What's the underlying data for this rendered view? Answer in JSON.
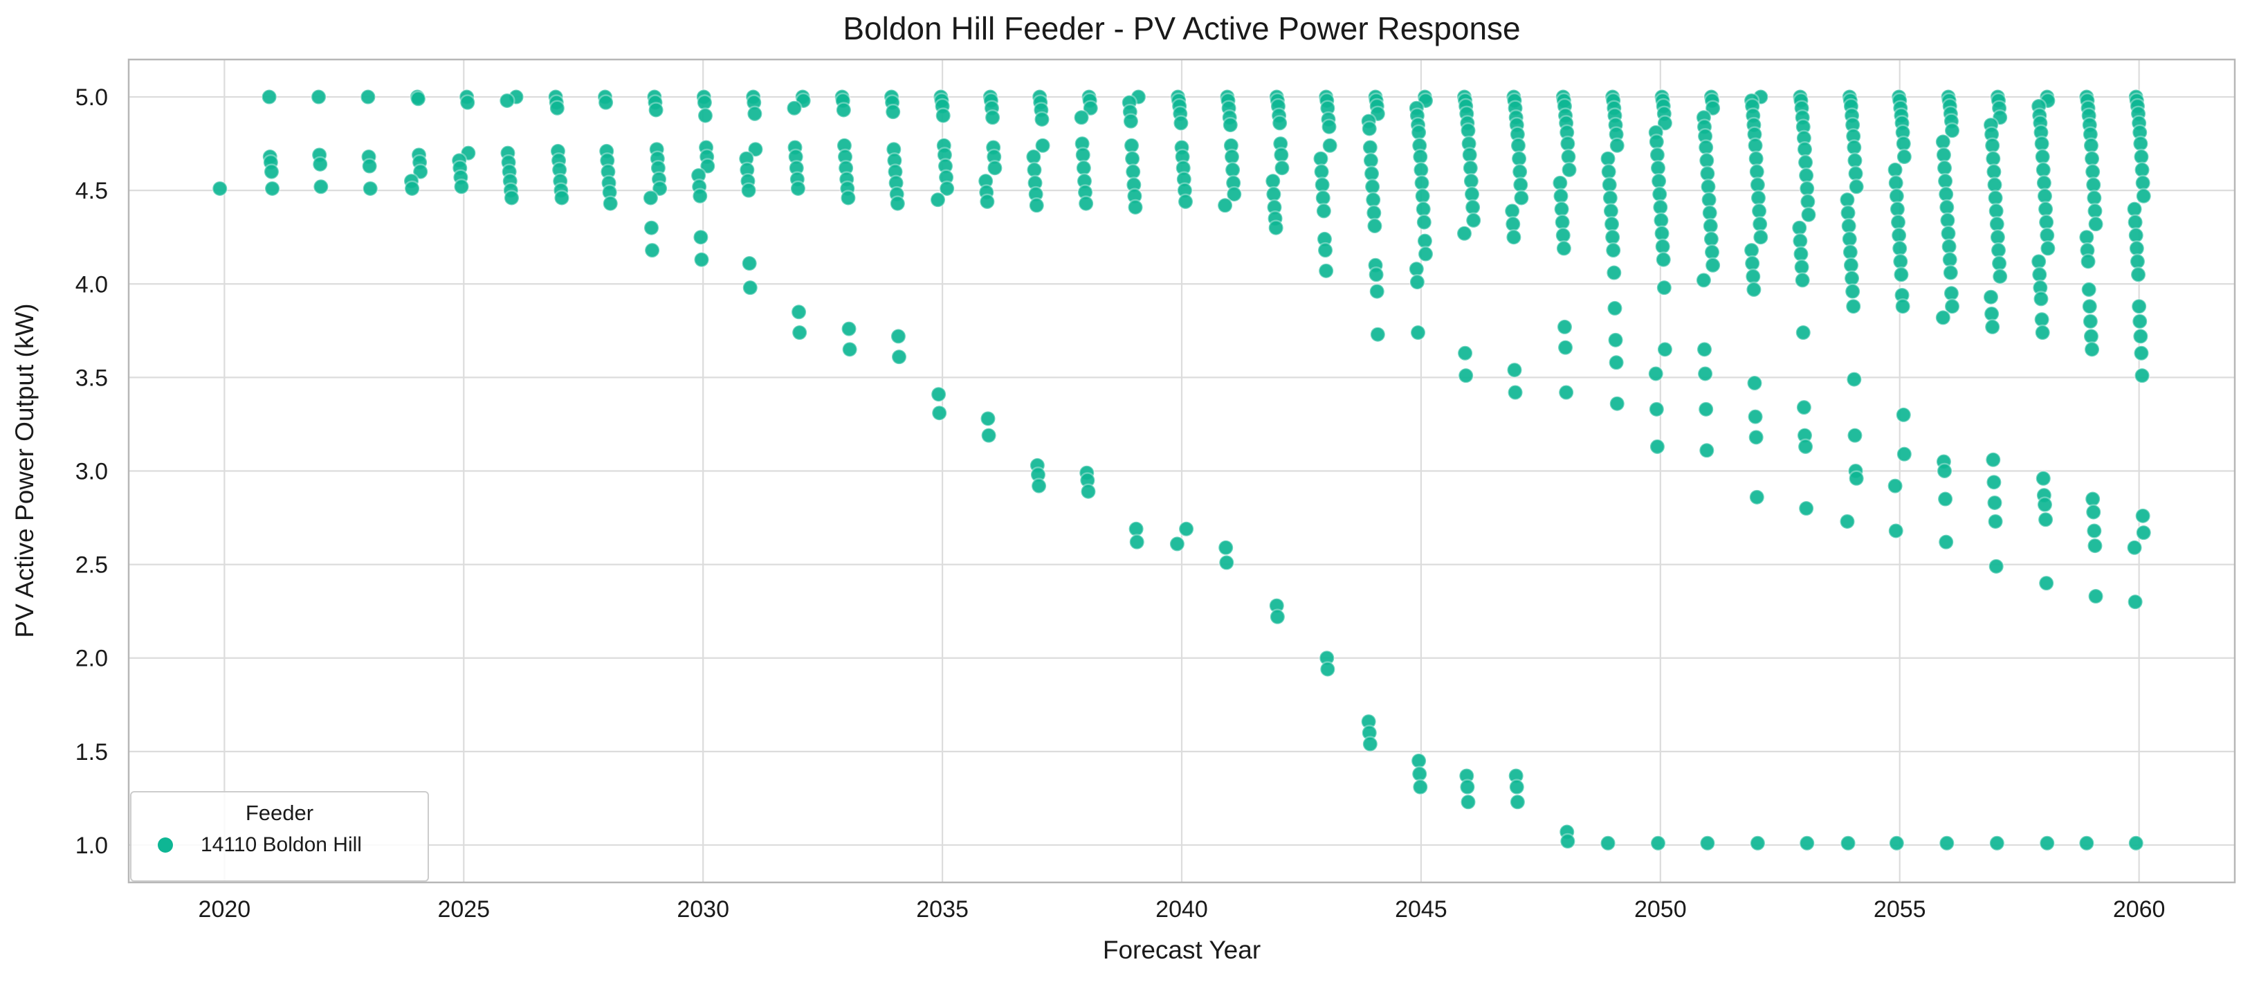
{
  "figure": {
    "background": "#ffffff"
  },
  "chart_data": {
    "type": "scatter",
    "title": "Boldon Hill Feeder - PV Active Power Response",
    "xlabel": "Forecast Year",
    "ylabel": "PV Active Power Output (kW)",
    "xlim": [
      2018,
      2062
    ],
    "ylim": [
      0.8,
      5.2
    ],
    "xticks": [
      2020,
      2025,
      2030,
      2035,
      2040,
      2045,
      2050,
      2055,
      2060
    ],
    "yticks": [
      1.0,
      1.5,
      2.0,
      2.5,
      3.0,
      3.5,
      4.0,
      4.5,
      5.0
    ],
    "ytick_labels": [
      "1.0",
      "1.5",
      "2.0",
      "2.5",
      "3.0",
      "3.5",
      "4.0",
      "4.5",
      "5.0"
    ],
    "grid": true,
    "legend": {
      "title": "Feeder",
      "position": "lower-left",
      "entries": [
        {
          "label": "14110 Boldon Hill",
          "color": "#0EB694"
        }
      ]
    },
    "styles": {
      "marker_color": "#0EB694",
      "grid_color": "#dcdcdc",
      "spine_color": "#b7b7b7",
      "text_color": "#1a1a1a",
      "marker_radius": 10.5
    },
    "series": [
      {
        "name": "14110 Boldon Hill",
        "color": "#0EB694",
        "points_by_year": {
          "2020": [
            4.51
          ],
          "2021": [
            5.0,
            4.68,
            4.65,
            4.6,
            4.51
          ],
          "2022": [
            5.0,
            4.69,
            4.64,
            4.52
          ],
          "2023": [
            5.0,
            4.68,
            4.63,
            4.51
          ],
          "2024": [
            5.0,
            4.99,
            4.69,
            4.65,
            4.6,
            4.55,
            4.51
          ],
          "2025": [
            5.0,
            4.97,
            4.7,
            4.66,
            4.62,
            4.57,
            4.52
          ],
          "2026": [
            5.0,
            4.98,
            4.7,
            4.65,
            4.6,
            4.55,
            4.5,
            4.46
          ],
          "2027": [
            5.0,
            4.97,
            4.94,
            4.71,
            4.66,
            4.61,
            4.55,
            4.5,
            4.46
          ],
          "2028": [
            5.0,
            4.97,
            4.71,
            4.66,
            4.6,
            4.54,
            4.49,
            4.43
          ],
          "2029": [
            5.0,
            4.97,
            4.93,
            4.72,
            4.67,
            4.62,
            4.56,
            4.51,
            4.46,
            4.3,
            4.18
          ],
          "2030": [
            5.0,
            4.97,
            4.9,
            4.73,
            4.68,
            4.63,
            4.58,
            4.52,
            4.47,
            4.25,
            4.13
          ],
          "2031": [
            5.0,
            4.97,
            4.91,
            4.72,
            4.67,
            4.61,
            4.55,
            4.5,
            4.11,
            3.98
          ],
          "2032": [
            5.0,
            4.98,
            4.94,
            4.73,
            4.68,
            4.62,
            4.56,
            4.51,
            3.85,
            3.74
          ],
          "2033": [
            5.0,
            4.98,
            4.93,
            4.74,
            4.68,
            4.62,
            4.56,
            4.51,
            4.46,
            3.76,
            3.65
          ],
          "2034": [
            5.0,
            4.97,
            4.92,
            4.72,
            4.66,
            4.6,
            4.54,
            4.48,
            4.43,
            3.72,
            3.61
          ],
          "2035": [
            5.0,
            4.98,
            4.95,
            4.9,
            4.74,
            4.69,
            4.63,
            4.57,
            4.51,
            4.45,
            3.41,
            3.31
          ],
          "2036": [
            5.0,
            4.98,
            4.94,
            4.89,
            4.73,
            4.68,
            4.62,
            4.55,
            4.49,
            4.44,
            3.28,
            3.19
          ],
          "2037": [
            5.0,
            4.97,
            4.93,
            4.88,
            4.74,
            4.68,
            4.61,
            4.54,
            4.48,
            4.42,
            3.03,
            2.98,
            2.92
          ],
          "2038": [
            5.0,
            4.98,
            4.94,
            4.89,
            4.75,
            4.69,
            4.62,
            4.55,
            4.49,
            4.43,
            2.99,
            2.95,
            2.89
          ],
          "2039": [
            5.0,
            4.97,
            4.92,
            4.87,
            4.74,
            4.67,
            4.6,
            4.53,
            4.47,
            4.41,
            2.69,
            2.62
          ],
          "2040": [
            5.0,
            4.98,
            4.95,
            4.91,
            4.86,
            4.73,
            4.68,
            4.62,
            4.56,
            4.5,
            4.44,
            2.69,
            2.61
          ],
          "2041": [
            5.0,
            4.98,
            4.94,
            4.89,
            4.85,
            4.74,
            4.68,
            4.61,
            4.54,
            4.48,
            4.42,
            2.59,
            2.51
          ],
          "2042": [
            5.0,
            4.98,
            4.95,
            4.9,
            4.86,
            4.75,
            4.69,
            4.62,
            4.55,
            4.48,
            4.41,
            4.35,
            4.3,
            2.28,
            2.22
          ],
          "2043": [
            5.0,
            4.98,
            4.94,
            4.88,
            4.84,
            4.74,
            4.67,
            4.6,
            4.53,
            4.46,
            4.39,
            4.24,
            4.18,
            4.07,
            2.0,
            1.94
          ],
          "2044": [
            5.0,
            4.98,
            4.95,
            4.91,
            4.87,
            4.83,
            4.73,
            4.66,
            4.59,
            4.52,
            4.45,
            4.38,
            4.31,
            4.1,
            4.05,
            3.96,
            3.73,
            1.66,
            1.6,
            1.54
          ],
          "2045": [
            5.0,
            4.98,
            4.94,
            4.9,
            4.85,
            4.81,
            4.74,
            4.68,
            4.61,
            4.54,
            4.47,
            4.4,
            4.33,
            4.23,
            4.16,
            4.08,
            4.01,
            3.74,
            1.45,
            1.38,
            1.31
          ],
          "2046": [
            5.0,
            4.98,
            4.95,
            4.91,
            4.86,
            4.82,
            4.75,
            4.69,
            4.62,
            4.55,
            4.48,
            4.41,
            4.34,
            4.27,
            3.63,
            3.51,
            1.37,
            1.31,
            1.23
          ],
          "2047": [
            5.0,
            4.98,
            4.94,
            4.89,
            4.85,
            4.8,
            4.74,
            4.67,
            4.6,
            4.53,
            4.46,
            4.39,
            4.32,
            4.25,
            3.54,
            3.42,
            1.37,
            1.31,
            1.23
          ],
          "2048": [
            5.0,
            4.98,
            4.95,
            4.9,
            4.86,
            4.81,
            4.75,
            4.68,
            4.61,
            4.54,
            4.47,
            4.4,
            4.33,
            4.26,
            4.19,
            3.77,
            3.66,
            3.42,
            1.07,
            1.02
          ],
          "2049": [
            5.0,
            4.98,
            4.94,
            4.9,
            4.85,
            4.8,
            4.74,
            4.67,
            4.6,
            4.53,
            4.46,
            4.39,
            4.32,
            4.25,
            4.18,
            4.06,
            3.87,
            3.7,
            3.58,
            3.36,
            1.01
          ],
          "2050": [
            5.0,
            4.98,
            4.95,
            4.91,
            4.86,
            4.81,
            4.76,
            4.69,
            4.62,
            4.55,
            4.48,
            4.41,
            4.34,
            4.27,
            4.2,
            4.13,
            3.98,
            3.65,
            3.52,
            3.33,
            3.13,
            1.01
          ],
          "2051": [
            5.0,
            4.98,
            4.94,
            4.89,
            4.84,
            4.79,
            4.73,
            4.66,
            4.59,
            4.52,
            4.45,
            4.38,
            4.31,
            4.24,
            4.17,
            4.1,
            4.02,
            3.65,
            3.52,
            3.33,
            3.11,
            1.01
          ],
          "2052": [
            5.0,
            4.98,
            4.95,
            4.9,
            4.85,
            4.8,
            4.74,
            4.67,
            4.6,
            4.53,
            4.46,
            4.39,
            4.32,
            4.25,
            4.18,
            4.11,
            4.04,
            3.97,
            3.47,
            3.29,
            3.18,
            2.86,
            1.01
          ],
          "2053": [
            5.0,
            4.98,
            4.94,
            4.89,
            4.84,
            4.78,
            4.72,
            4.65,
            4.58,
            4.51,
            4.44,
            4.37,
            4.3,
            4.23,
            4.16,
            4.09,
            4.02,
            3.74,
            3.34,
            3.19,
            3.13,
            2.8,
            1.01
          ],
          "2054": [
            5.0,
            4.98,
            4.95,
            4.9,
            4.85,
            4.79,
            4.73,
            4.66,
            4.59,
            4.52,
            4.45,
            4.38,
            4.31,
            4.24,
            4.17,
            4.1,
            4.03,
            3.96,
            3.88,
            3.49,
            3.19,
            3.0,
            2.96,
            2.73,
            1.01
          ],
          "2055": [
            5.0,
            4.98,
            4.94,
            4.9,
            4.86,
            4.81,
            4.75,
            4.68,
            4.61,
            4.54,
            4.47,
            4.4,
            4.33,
            4.26,
            4.19,
            4.12,
            4.05,
            3.94,
            3.88,
            3.3,
            3.09,
            2.92,
            2.68,
            1.01
          ],
          "2056": [
            5.0,
            4.98,
            4.95,
            4.91,
            4.87,
            4.82,
            4.76,
            4.69,
            4.62,
            4.55,
            4.48,
            4.41,
            4.34,
            4.27,
            4.2,
            4.13,
            4.06,
            3.95,
            3.88,
            3.82,
            3.05,
            3.0,
            2.85,
            2.62,
            1.01
          ],
          "2057": [
            5.0,
            4.98,
            4.94,
            4.89,
            4.85,
            4.8,
            4.74,
            4.67,
            4.6,
            4.53,
            4.46,
            4.39,
            4.32,
            4.25,
            4.18,
            4.11,
            4.04,
            3.93,
            3.84,
            3.77,
            3.06,
            2.94,
            2.83,
            2.73,
            2.49,
            1.01
          ],
          "2058": [
            5.0,
            4.98,
            4.95,
            4.9,
            4.86,
            4.81,
            4.75,
            4.68,
            4.61,
            4.54,
            4.47,
            4.4,
            4.33,
            4.26,
            4.19,
            4.12,
            4.05,
            3.98,
            3.92,
            3.81,
            3.74,
            2.96,
            2.87,
            2.82,
            2.74,
            2.4,
            1.01
          ],
          "2059": [
            5.0,
            4.98,
            4.94,
            4.9,
            4.85,
            4.8,
            4.74,
            4.67,
            4.6,
            4.53,
            4.46,
            4.39,
            4.32,
            4.25,
            4.18,
            4.12,
            3.97,
            3.88,
            3.8,
            3.72,
            3.65,
            2.85,
            2.78,
            2.68,
            2.6,
            2.33,
            1.01
          ],
          "2060": [
            5.0,
            4.98,
            4.95,
            4.91,
            4.86,
            4.81,
            4.75,
            4.68,
            4.61,
            4.54,
            4.47,
            4.4,
            4.33,
            4.26,
            4.19,
            4.12,
            4.05,
            3.88,
            3.8,
            3.72,
            3.63,
            3.51,
            2.76,
            2.67,
            2.59,
            2.3,
            1.01
          ]
        }
      }
    ]
  }
}
